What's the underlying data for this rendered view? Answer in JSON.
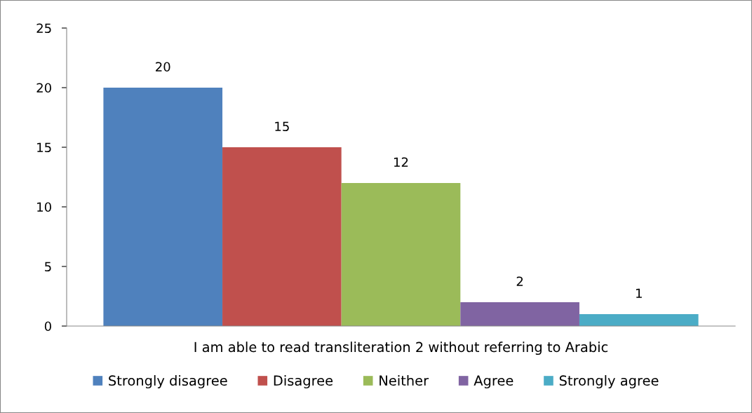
{
  "chart_data": {
    "type": "bar",
    "categories": [
      "I am able to read transliteration 2 without referring to Arabic"
    ],
    "series": [
      {
        "name": "Strongly disagree",
        "color": "#4f81bd",
        "values": [
          20
        ]
      },
      {
        "name": "Disagree",
        "color": "#c0504d",
        "values": [
          15
        ]
      },
      {
        "name": "Neither",
        "color": "#9bbb59",
        "values": [
          12
        ]
      },
      {
        "name": "Agree",
        "color": "#8064a2",
        "values": [
          2
        ]
      },
      {
        "name": "Strongly agree",
        "color": "#4bacc6",
        "values": [
          1
        ]
      }
    ],
    "ylim": [
      0,
      25
    ],
    "yticks": [
      0,
      5,
      10,
      15,
      20,
      25
    ],
    "data_labels": true,
    "grid": false,
    "legend": "bottom"
  }
}
